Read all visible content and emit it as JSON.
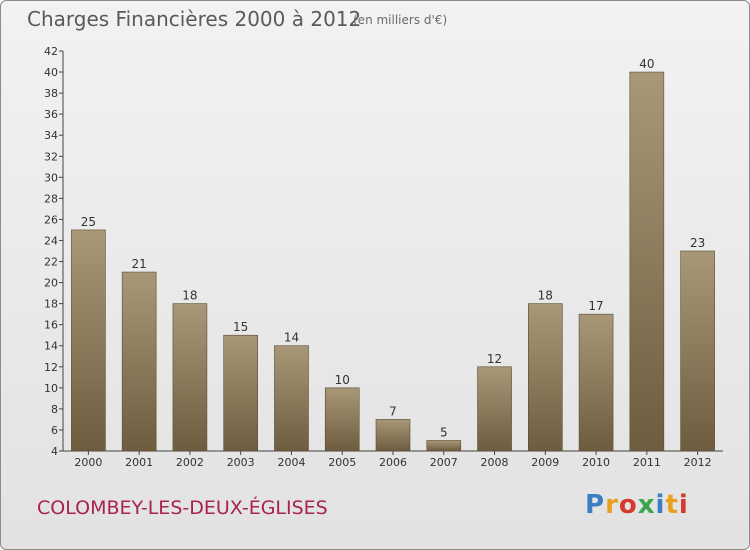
{
  "header": {
    "title": "Charges Financières 2000 à 2012",
    "subtitle": "(en milliers d'€)"
  },
  "footer": {
    "place": "COLOMBEY-LES-DEUX-ÉGLISES",
    "logo_text": "Proxiti",
    "logo_colors": [
      "#3a7fc4",
      "#e8a020",
      "#d63a2f",
      "#3aa54a",
      "#3a7fc4",
      "#e8a020",
      "#d63a2f"
    ]
  },
  "chart_data": {
    "type": "bar",
    "categories": [
      "2000",
      "2001",
      "2002",
      "2003",
      "2004",
      "2005",
      "2006",
      "2007",
      "2008",
      "2009",
      "2010",
      "2011",
      "2012"
    ],
    "values": [
      25,
      21,
      18,
      15,
      14,
      10,
      7,
      5,
      12,
      18,
      17,
      40,
      23
    ],
    "ylim": [
      4,
      42
    ],
    "yticks": [
      4,
      6,
      8,
      10,
      12,
      14,
      16,
      18,
      20,
      22,
      24,
      26,
      28,
      30,
      32,
      34,
      36,
      38,
      40,
      42
    ],
    "grid": false,
    "bar_color_top": "#a89878",
    "bar_color_bottom": "#6e5c3e"
  }
}
